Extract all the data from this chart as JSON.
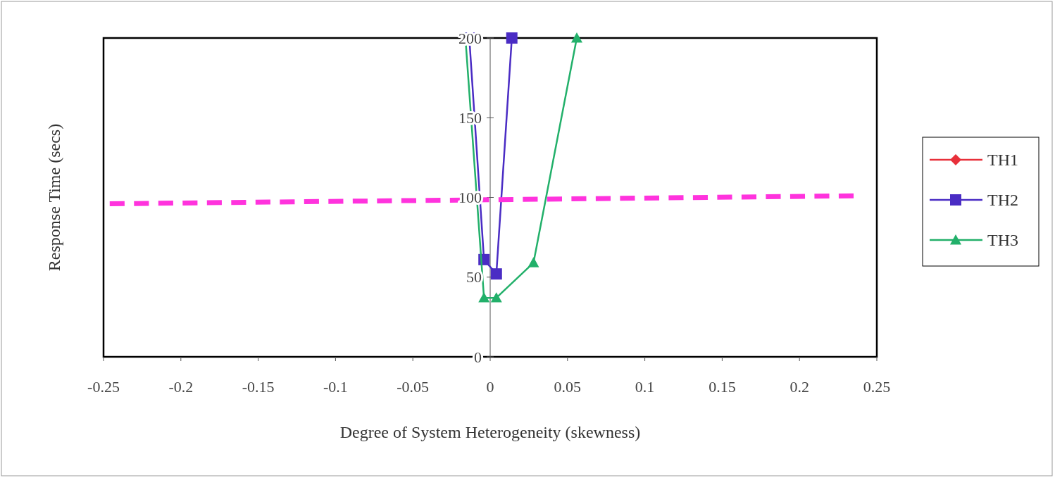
{
  "chart_data": {
    "type": "line",
    "xlabel": "Degree of System Heterogeneity (skewness)",
    "ylabel": "Response Time (secs)",
    "xlim": [
      -0.25,
      0.25
    ],
    "xticks": [
      -0.25,
      -0.2,
      -0.15,
      -0.1,
      -0.05,
      0,
      0.05,
      0.1,
      0.15,
      0.2,
      0.25
    ],
    "ylim": [
      0,
      200
    ],
    "yticks": [
      0,
      50,
      100,
      150,
      200
    ],
    "grid": false,
    "legend": "right",
    "series": [
      {
        "name": "TH1",
        "color": "#e8303a",
        "marker": "diamond"
      },
      {
        "name": "TH2",
        "color": "#4a2cc4",
        "marker": "square",
        "x": [
          -0.0135,
          -0.004,
          0.004,
          0.014
        ],
        "values": [
          200,
          61,
          52,
          200
        ]
      },
      {
        "name": "TH3",
        "color": "#22b06a",
        "marker": "triangle",
        "x": [
          -0.016,
          -0.004,
          0.004,
          0.028,
          0.056
        ],
        "values": [
          200,
          37,
          37,
          59,
          200
        ]
      },
      {
        "color": "#ff33dd",
        "marker": "none",
        "line_style": "dashed",
        "x": [
          -0.246,
          0.235
        ],
        "values": [
          96,
          101
        ]
      }
    ]
  }
}
